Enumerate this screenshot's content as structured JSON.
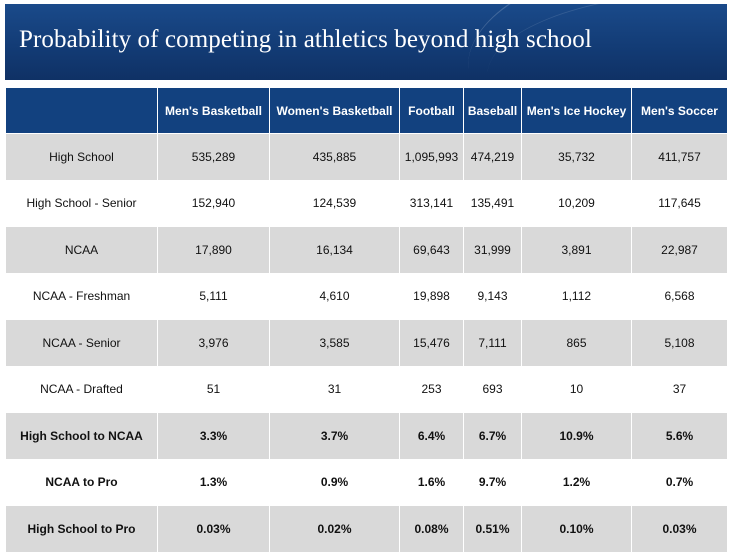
{
  "title": "Probability of competing in athletics beyond high school",
  "table": {
    "columns": [
      "",
      "Men's Basketball",
      "Women's Basketball",
      "Football",
      "Baseball",
      "Men's Ice Hockey",
      "Men's Soccer"
    ],
    "rows": [
      {
        "label": "High School",
        "values": [
          "535,289",
          "435,885",
          "1,095,993",
          "474,219",
          "35,732",
          "411,757"
        ]
      },
      {
        "label": "High School - Senior",
        "values": [
          "152,940",
          "124,539",
          "313,141",
          "135,491",
          "10,209",
          "117,645"
        ]
      },
      {
        "label": "NCAA",
        "values": [
          "17,890",
          "16,134",
          "69,643",
          "31,999",
          "3,891",
          "22,987"
        ]
      },
      {
        "label": "NCAA - Freshman",
        "values": [
          "5,111",
          "4,610",
          "19,898",
          "9,143",
          "1,112",
          "6,568"
        ]
      },
      {
        "label": "NCAA - Senior",
        "values": [
          "3,976",
          "3,585",
          "15,476",
          "7,111",
          "865",
          "5,108"
        ]
      },
      {
        "label": "NCAA - Drafted",
        "values": [
          "51",
          "31",
          "253",
          "693",
          "10",
          "37"
        ]
      },
      {
        "label": "High School to NCAA",
        "values": [
          "3.3%",
          "3.7%",
          "6.4%",
          "6.7%",
          "10.9%",
          "5.6%"
        ]
      },
      {
        "label": "NCAA to Pro",
        "values": [
          "1.3%",
          "0.9%",
          "1.6%",
          "9.7%",
          "1.2%",
          "0.7%"
        ]
      },
      {
        "label": "High School to Pro",
        "values": [
          "0.03%",
          "0.02%",
          "0.08%",
          "0.51%",
          "0.10%",
          "0.03%"
        ]
      }
    ]
  },
  "colors": {
    "header_blue": "#12417f",
    "banner_blue": "#133c76",
    "row_shade": "#d9d9d9"
  }
}
